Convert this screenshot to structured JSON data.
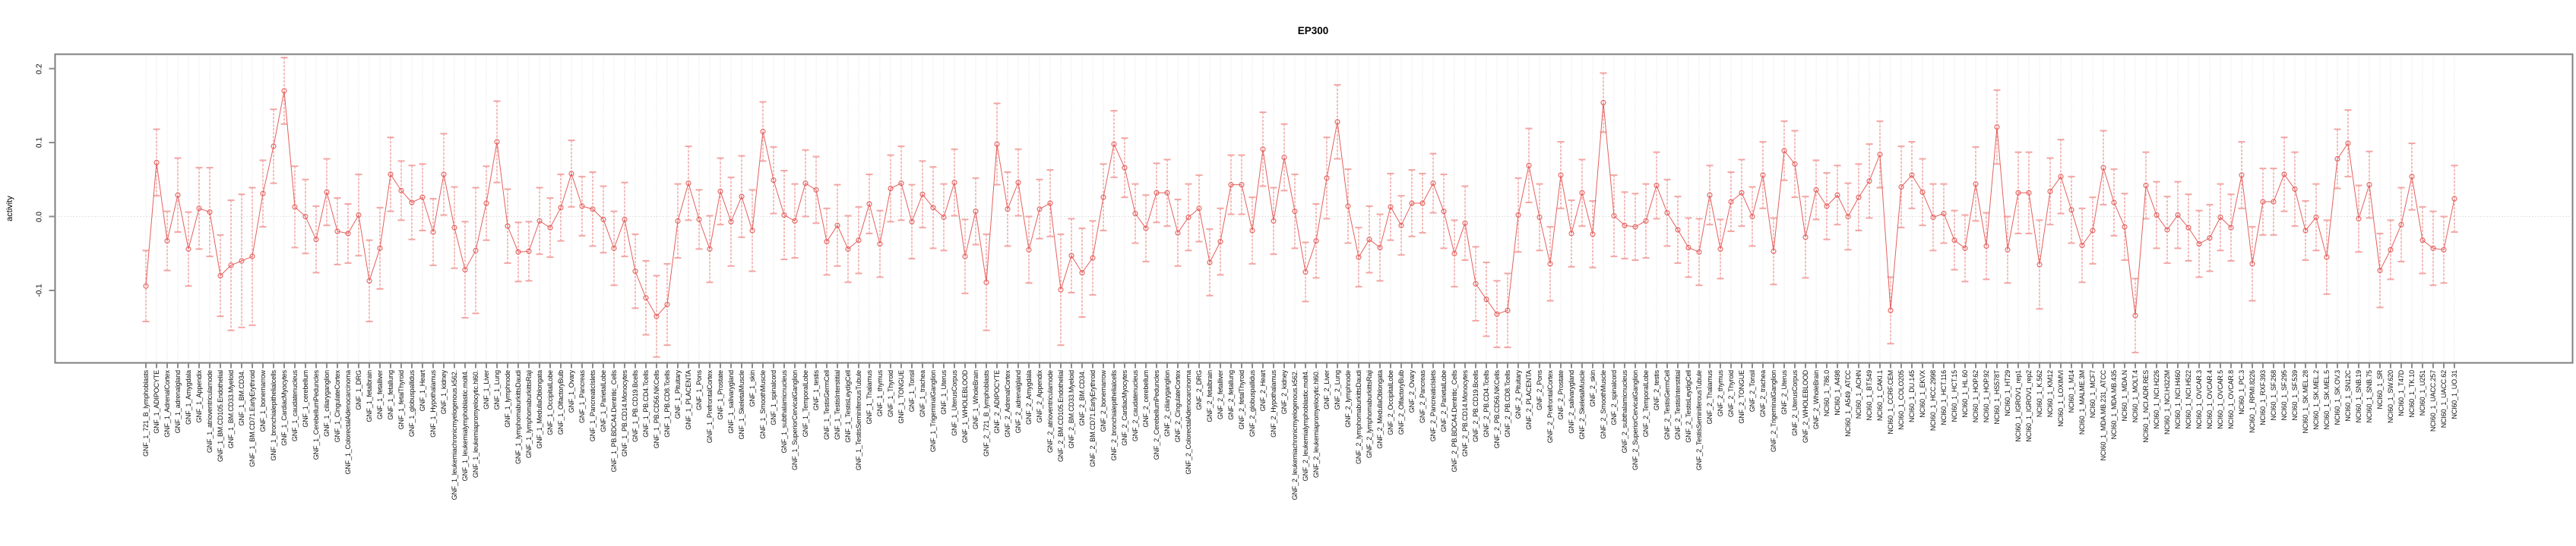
{
  "header": {
    "title": "EP300"
  },
  "y_axis": {
    "label": "activity"
  },
  "chart_data": {
    "type": "line",
    "subtype": "point-estimate-with-error-bars",
    "title": "EP300",
    "xlabel": "",
    "ylabel": "activity",
    "ylim": [
      -0.205,
      0.22
    ],
    "yticks": [
      0.2,
      0.1,
      0.0,
      -0.1
    ],
    "ytick_labels": [
      "0.2",
      "0.1",
      "0.0",
      "-0.1"
    ],
    "grid": {
      "vertical_per_category": true,
      "zero_line_dotted": true,
      "legend": "none"
    },
    "colors": {
      "line": "#e4615e",
      "marker": "#e4615e",
      "error_stem": "#ef8f8c",
      "error_cap": "#f2a6a3",
      "gridline": "#dcdcdc",
      "zero_line": "#c9c9c9",
      "panel_border": "#7f7f7f",
      "tick": "#8c8c8c"
    },
    "categories": [
      "GNF_1_721_B_lymphoblasts",
      "GNF_1_ADIPOCYTE",
      "GNF_1_AdrenalCortex",
      "GNF_1_adrenalgland",
      "GNF_1_Amygdala",
      "GNF_1_Appendix",
      "GNF_1_atrioventricularnode",
      "GNF_1_BM.CD105.Endothelial",
      "GNF_1_BM.CD33.Myeloid",
      "GNF_1_BM.CD34.",
      "GNF_1_BM.CD71.EarlyErythroid",
      "GNF_1_bonemarrow",
      "GNF_1_bronchialepithelialcells",
      "GNF_1_CardiacMyocytes",
      "GNF_1_caudatenucleus",
      "GNF_1_cerebellum",
      "GNF_1_CerebellumPeduncles",
      "GNF_1_ciliaryganglion",
      "GNF_1_CingulateCortex",
      "GNF_1_ColorectalAdenocarcinoma",
      "GNF_1_DRG",
      "GNF_1_fetalbrain",
      "GNF_1_fetalliver",
      "GNF_1_fetallung",
      "GNF_1_fetalThyroid",
      "GNF_1_globuspallidus",
      "GNF_1_Heart",
      "GNF_1_Hypothalamus",
      "GNF_1_kidney",
      "GNF_1_leukemiachronicmyelogenous.k562.",
      "GNF_1_leukemialymphoblastic.molt4.",
      "GNF_1_leukemiapromyelocytic.hl60.",
      "GNF_1_Liver",
      "GNF_1_Lung",
      "GNF_1_lymphnode",
      "GNF_1_lymphomaburkittsDaudi",
      "GNF_1_lymphomaburkittsRaji",
      "GNF_1_MedullaOblongata",
      "GNF_1_OccipitalLobe",
      "GNF_1_OlfactoryBulb",
      "GNF_1_Ovary",
      "GNF_1_Pancreas",
      "GNF_1_PancreaticIslets",
      "GNF_1_ParietalLobe",
      "GNF_1_PB.BDCA4.Dentritic_Cells",
      "GNF_1_PB.CD14.Monocytes",
      "GNF_1_PB.CD19.Bcells",
      "GNF_1_PB.CD4.Tcells",
      "GNF_1_PB.CD56.NKCells",
      "GNF_1_PB.CD8.Tcells",
      "GNF_1_Pituitary",
      "GNF_1_PLACENTA",
      "GNF_1_Pons",
      "GNF_1_PrefrontalCortex",
      "GNF_1_Prostate",
      "GNF_1_salivarygland",
      "GNF_1_SkeletalMuscle",
      "GNF_1_skin",
      "GNF_1_SmoothMuscle",
      "GNF_1_spinalcord",
      "GNF_1_subthalamicnucleus",
      "GNF_1_SuperiorCervicalGanglion",
      "GNF_1_TemporalLobe",
      "GNF_1_testis",
      "GNF_1_TestisGermCell",
      "GNF_1_TestisInterstitial",
      "GNF_1_TestisLeydigCell",
      "GNF_1_TestisSeminiferousTubule",
      "GNF_1_Thalamus",
      "GNF_1_thymus",
      "GNF_1_Thyroid",
      "GNF_1_TONGUE",
      "GNF_1_Tonsil",
      "GNF_1_trachea",
      "GNF_1_TrigeminalGanglion",
      "GNF_1_Uterus",
      "GNF_1_UterusCorpus",
      "GNF_1_WHOLEBLOOD",
      "GNF_1_WholeBrain",
      "GNF_2_721_B_lymphoblasts",
      "GNF_2_ADIPOCYTE",
      "GNF_2_AdrenalCortex",
      "GNF_2_adrenalgland",
      "GNF_2_Amygdala",
      "GNF_2_Appendix",
      "GNF_2_atrioventricularnode",
      "GNF_2_BM.CD105.Endothelial",
      "GNF_2_BM.CD33.Myeloid",
      "GNF_2_BM.CD34.",
      "GNF_2_BM.CD71.EarlyErythroid",
      "GNF_2_bonemarrow",
      "GNF_2_bronchialepithelialcells",
      "GNF_2_CardiacMyocytes",
      "GNF_2_caudatenucleus",
      "GNF_2_cerebellum",
      "GNF_2_CerebellumPeduncles",
      "GNF_2_ciliaryganglion",
      "GNF_2_CingulateCortex",
      "GNF_2_ColorectalAdenocarcinoma",
      "GNF_2_DRG",
      "GNF_2_fetalbrain",
      "GNF_2_fetalliver",
      "GNF_2_fetallung",
      "GNF_2_fetalThyroid",
      "GNF_2_globuspallidus",
      "GNF_2_Heart",
      "GNF_2_Hypothalamus",
      "GNF_2_kidney",
      "GNF_2_leukemiachronicmyelogenous.k562.",
      "GNF_2_leukemialymphoblastic.molt4.",
      "GNF_2_leukemiapromyelocytic.hl60.",
      "GNF_2_Liver",
      "GNF_2_Lung",
      "GNF_2_lymphnode",
      "GNF_2_lymphomaburkittsDaudi",
      "GNF_2_lymphomaburkittsRaji",
      "GNF_2_MedullaOblongata",
      "GNF_2_OccipitalLobe",
      "GNF_2_OlfactoryBulb",
      "GNF_2_Ovary",
      "GNF_2_Pancreas",
      "GNF_2_PancreaticIslets",
      "GNF_2_ParietalLobe",
      "GNF_2_PB.BDCA4.Dentritic_Cells",
      "GNF_2_PB.CD14.Monocytes",
      "GNF_2_PB.CD19.Bcells",
      "GNF_2_PB.CD4.Tcells",
      "GNF_2_PB.CD56.NKCells",
      "GNF_2_PB.CD8.Tcells",
      "GNF_2_Pituitary",
      "GNF_2_PLACENTA",
      "GNF_2_Pons",
      "GNF_2_PrefrontalCortex",
      "GNF_2_Prostate",
      "GNF_2_salivarygland",
      "GNF_2_SkeletalMuscle",
      "GNF_2_skin",
      "GNF_2_SmoothMuscle",
      "GNF_2_spinalcord",
      "GNF_2_subthalamicnucleus",
      "GNF_2_SuperiorCervicalGanglion",
      "GNF_2_TemporalLobe",
      "GNF_2_testis",
      "GNF_2_TestisGermCell",
      "GNF_2_TestisInterstitial",
      "GNF_2_TestisLeydigCell",
      "GNF_2_TestisSeminiferousTubule",
      "GNF_2_Thalamus",
      "GNF_2_thymus",
      "GNF_2_Thyroid",
      "GNF_2_TONGUE",
      "GNF_2_Tonsil",
      "GNF_2_trachea",
      "GNF_2_TrigeminalGanglion",
      "GNF_2_Uterus",
      "GNF_2_UterusCorpus",
      "GNF_2_WHOLEBLOOD",
      "GNF_2_WholeBrain",
      "NCI60_1_786.0",
      "NCI60_1_A498",
      "NCI60_1_A549_ATCC",
      "NCI60_1_ACHN",
      "NCI60_1_BT.549",
      "NCI60_1_CAKI.1",
      "NCI60_1_CCRF.CEM",
      "NCI60_1_COLO205",
      "NCI60_1_DU.145",
      "NCI60_1_EKVX",
      "NCI60_1_HCC.2998",
      "NCI60_1_HCT.116",
      "NCI60_1_HCT.15",
      "NCI60_1_HL.60",
      "NCI60_1_HOP.62",
      "NCI60_1_HOP.92",
      "NCI60_1_HS578T",
      "NCI60_1_HT29",
      "NCI60_1_IGROV1_rep1",
      "NCI60_1_IGROV1_rep2",
      "NCI60_1_K.562",
      "NCI60_1_KM12",
      "NCI60_1_LOXIMVI",
      "NCI60_1_M14",
      "NCI60_1_MALME.3M",
      "NCI60_1_MCF7",
      "NCI60_1_MDA.MB.231_ATCC",
      "NCI60_1_MDA.MB.435",
      "NCI60_1_MDA.N",
      "NCI60_1_MOLT.4",
      "NCI60_1_NCI.ADR.RES",
      "NCI60_1_NCI.H226",
      "NCI60_1_NCI.H322M",
      "NCI60_1_NCI.H460",
      "NCI60_1_NCI.H522",
      "NCI60_1_OVCAR.3",
      "NCI60_1_OVCAR.4",
      "NCI60_1_OVCAR.5",
      "NCI60_1_OVCAR.8",
      "NCI60_1_PC.3",
      "NCI60_1_RPMI.8226",
      "NCI60_1_RXF.393",
      "NCI60_1_SF.268",
      "NCI60_1_SF.295",
      "NCI60_1_SF.539",
      "NCI60_1_SK.MEL.28",
      "NCI60_1_SK.MEL.2",
      "NCI60_1_SK.MEL.5",
      "NCI60_1_SK.OV.3",
      "NCI60_1_SN12C",
      "NCI60_1_SNB.19",
      "NCI60_1_SNB.75",
      "NCI60_1_SR",
      "NCI60_1_SW.620",
      "NCI60_1_T47D",
      "NCI60_1_TK.10",
      "NCI60_1_U251",
      "NCI60_1_UACC.257",
      "NCI60_1_UACC.62",
      "NCI60_1_UO.31"
    ],
    "values": [
      -0.094,
      0.073,
      -0.033,
      0.029,
      -0.044,
      0.011,
      0.006,
      -0.08,
      -0.066,
      -0.06,
      -0.054,
      0.031,
      0.095,
      0.17,
      0.013,
      0.0,
      -0.031,
      0.033,
      -0.02,
      -0.023,
      0.002,
      -0.087,
      -0.043,
      0.057,
      0.035,
      0.019,
      0.026,
      -0.021,
      0.057,
      -0.015,
      -0.072,
      -0.046,
      0.018,
      0.101,
      -0.013,
      -0.048,
      -0.047,
      -0.006,
      -0.015,
      0.012,
      0.058,
      0.014,
      0.01,
      -0.004,
      -0.043,
      -0.004,
      -0.074,
      -0.11,
      -0.135,
      -0.119,
      -0.006,
      0.045,
      -0.004,
      -0.044,
      0.034,
      -0.007,
      0.027,
      -0.019,
      0.115,
      0.049,
      0.002,
      -0.006,
      0.045,
      0.036,
      -0.034,
      -0.012,
      -0.044,
      -0.032,
      0.017,
      -0.037,
      0.038,
      0.045,
      -0.007,
      0.03,
      0.012,
      -0.001,
      0.046,
      -0.054,
      0.007,
      -0.089,
      0.098,
      0.01,
      0.046,
      -0.045,
      0.01,
      0.018,
      -0.099,
      -0.053,
      -0.076,
      -0.056,
      0.026,
      0.098,
      0.066,
      0.004,
      -0.016,
      0.032,
      0.032,
      -0.022,
      -0.001,
      0.011,
      -0.062,
      -0.034,
      0.043,
      0.043,
      -0.019,
      0.091,
      -0.006,
      0.08,
      0.007,
      -0.075,
      -0.033,
      0.052,
      0.128,
      0.014,
      -0.055,
      -0.031,
      -0.042,
      0.013,
      -0.012,
      0.018,
      0.018,
      0.045,
      0.007,
      -0.05,
      -0.009,
      -0.091,
      -0.112,
      -0.132,
      -0.127,
      0.002,
      0.069,
      -0.001,
      -0.064,
      0.056,
      -0.023,
      0.032,
      -0.024,
      0.154,
      0.001,
      -0.012,
      -0.014,
      -0.006,
      0.042,
      0.005,
      -0.018,
      -0.042,
      -0.048,
      0.029,
      -0.044,
      0.02,
      0.032,
      0.0,
      0.056,
      -0.047,
      0.089,
      0.071,
      -0.028,
      0.036,
      0.014,
      0.029,
      0.0,
      0.026,
      0.048,
      0.084,
      -0.127,
      0.04,
      0.056,
      0.033,
      -0.001,
      0.004,
      -0.032,
      -0.043,
      0.044,
      -0.04,
      0.121,
      -0.045,
      0.032,
      0.032,
      -0.065,
      0.034,
      0.054,
      0.009,
      -0.039,
      -0.019,
      0.066,
      0.019,
      -0.014,
      -0.134,
      0.042,
      0.002,
      -0.018,
      0.002,
      -0.015,
      -0.037,
      -0.029,
      -0.001,
      -0.015,
      0.056,
      -0.064,
      0.02,
      0.02,
      0.057,
      0.037,
      -0.019,
      -0.001,
      -0.055,
      0.078,
      0.099,
      -0.003,
      0.043,
      -0.073,
      -0.045,
      -0.011,
      0.054,
      -0.032,
      -0.043,
      -0.045,
      0.024
    ],
    "ci_half_width": [
      0.048,
      0.045,
      0.04,
      0.05,
      0.05,
      0.055,
      0.06,
      0.055,
      0.088,
      0.09,
      0.093,
      0.045,
      0.05,
      0.045,
      0.055,
      0.05,
      0.045,
      0.045,
      0.045,
      0.04,
      0.055,
      0.055,
      0.055,
      0.05,
      0.04,
      0.05,
      0.045,
      0.045,
      0.055,
      0.055,
      0.065,
      0.085,
      0.05,
      0.055,
      0.05,
      0.04,
      0.04,
      0.045,
      0.04,
      0.045,
      0.045,
      0.04,
      0.05,
      0.045,
      0.05,
      0.05,
      0.05,
      0.05,
      0.055,
      0.055,
      0.05,
      0.05,
      0.04,
      0.045,
      0.045,
      0.06,
      0.055,
      0.055,
      0.04,
      0.045,
      0.06,
      0.05,
      0.045,
      0.045,
      0.045,
      0.055,
      0.045,
      0.045,
      0.04,
      0.045,
      0.045,
      0.05,
      0.05,
      0.045,
      0.055,
      0.045,
      0.045,
      0.05,
      0.045,
      0.065,
      0.055,
      0.05,
      0.045,
      0.045,
      0.04,
      0.045,
      0.075,
      0.05,
      0.06,
      0.05,
      0.045,
      0.045,
      0.04,
      0.04,
      0.045,
      0.04,
      0.045,
      0.045,
      0.045,
      0.045,
      0.045,
      0.045,
      0.04,
      0.04,
      0.045,
      0.05,
      0.045,
      0.045,
      0.05,
      0.04,
      0.05,
      0.055,
      0.05,
      0.05,
      0.04,
      0.045,
      0.045,
      0.045,
      0.04,
      0.045,
      0.04,
      0.04,
      0.05,
      0.045,
      0.05,
      0.05,
      0.05,
      0.045,
      0.05,
      0.05,
      0.05,
      0.045,
      0.05,
      0.045,
      0.045,
      0.045,
      0.045,
      0.04,
      0.055,
      0.045,
      0.045,
      0.05,
      0.045,
      0.045,
      0.045,
      0.04,
      0.045,
      0.04,
      0.04,
      0.04,
      0.045,
      0.04,
      0.045,
      0.045,
      0.04,
      0.045,
      0.055,
      0.04,
      0.045,
      0.04,
      0.045,
      0.045,
      0.05,
      0.045,
      0.045,
      0.055,
      0.045,
      0.045,
      0.045,
      0.04,
      0.04,
      0.045,
      0.05,
      0.045,
      0.05,
      0.045,
      0.055,
      0.055,
      0.06,
      0.045,
      0.05,
      0.045,
      0.05,
      0.045,
      0.05,
      0.045,
      0.045,
      0.05,
      0.045,
      0.045,
      0.045,
      0.045,
      0.045,
      0.045,
      0.045,
      0.045,
      0.045,
      0.045,
      0.05,
      0.045,
      0.045,
      0.05,
      0.05,
      0.04,
      0.045,
      0.05,
      0.04,
      0.045,
      0.045,
      0.045,
      0.05,
      0.04,
      0.05,
      0.045,
      0.045,
      0.05,
      0.045,
      0.045
    ]
  }
}
